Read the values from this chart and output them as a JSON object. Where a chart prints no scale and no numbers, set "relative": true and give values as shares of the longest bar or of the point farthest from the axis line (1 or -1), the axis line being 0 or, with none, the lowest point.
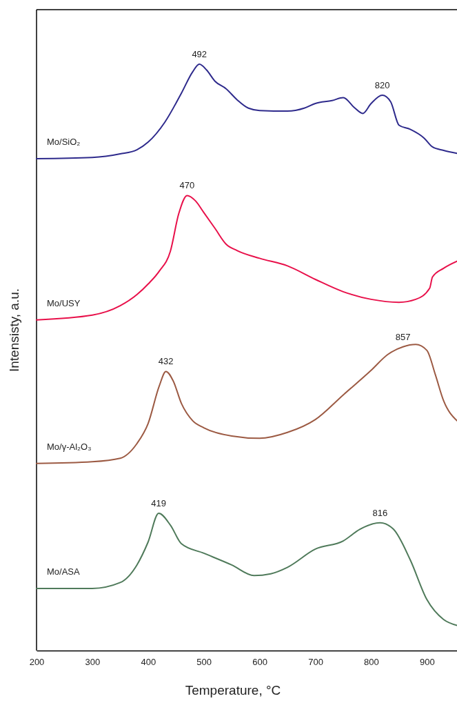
{
  "chart_data": {
    "type": "line",
    "relative": true,
    "xlabel": "Temperature, °C",
    "ylabel": "Intensisty, a.u.",
    "xlim": [
      200,
      954
    ],
    "xticks": [
      200,
      300,
      400,
      500,
      600,
      700,
      800,
      900
    ],
    "legend": false,
    "grid": false,
    "marker": "none",
    "line_style": "solid",
    "series": [
      {
        "name": "Mo/SiO₂",
        "color": "#2e2a8c",
        "x": [
          200,
          300,
          350,
          380,
          400,
          430,
          460,
          480,
          492,
          505,
          520,
          540,
          560,
          580,
          600,
          650,
          680,
          700,
          730,
          750,
          770,
          785,
          800,
          820,
          835,
          850,
          870,
          895,
          910,
          930,
          954
        ],
        "values": [
          0.839,
          0.841,
          0.847,
          0.854,
          0.867,
          0.901,
          0.951,
          0.987,
          1.0,
          0.99,
          0.971,
          0.958,
          0.939,
          0.925,
          0.921,
          0.92,
          0.925,
          0.933,
          0.938,
          0.943,
          0.926,
          0.916,
          0.933,
          0.947,
          0.936,
          0.896,
          0.889,
          0.874,
          0.859,
          0.853,
          0.848
        ]
      },
      {
        "name": "Mo/USY",
        "color": "#e8104a",
        "x": [
          200,
          300,
          350,
          380,
          400,
          420,
          440,
          455,
          470,
          485,
          500,
          520,
          540,
          560,
          600,
          650,
          700,
          750,
          800,
          850,
          880,
          905,
          910,
          930,
          954
        ],
        "values": [
          0.564,
          0.572,
          0.588,
          0.607,
          0.625,
          0.647,
          0.681,
          0.745,
          0.776,
          0.767,
          0.747,
          0.72,
          0.693,
          0.682,
          0.669,
          0.656,
          0.633,
          0.612,
          0.599,
          0.594,
          0.599,
          0.618,
          0.637,
          0.652,
          0.664
        ]
      },
      {
        "name": "Mo/γ-Al₂O₃",
        "color": "#9c5a43",
        "x": [
          200,
          300,
          350,
          380,
          400,
          420,
          432,
          445,
          460,
          480,
          500,
          550,
          600,
          650,
          700,
          750,
          800,
          830,
          857,
          880,
          900,
          915,
          930,
          954
        ],
        "values": [
          0.319,
          0.322,
          0.328,
          0.353,
          0.387,
          0.451,
          0.476,
          0.46,
          0.421,
          0.392,
          0.38,
          0.366,
          0.362,
          0.372,
          0.394,
          0.436,
          0.478,
          0.505,
          0.518,
          0.522,
          0.512,
          0.471,
          0.426,
          0.392
        ]
      },
      {
        "name": "Mo/ASA",
        "color": "#4f7a5a",
        "x": [
          200,
          250,
          300,
          350,
          380,
          400,
          419,
          440,
          460,
          500,
          550,
          590,
          620,
          650,
          700,
          750,
          780,
          816,
          840,
          870,
          900,
          930,
          954
        ],
        "values": [
          0.106,
          0.106,
          0.106,
          0.116,
          0.146,
          0.185,
          0.234,
          0.214,
          0.182,
          0.166,
          0.146,
          0.128,
          0.131,
          0.142,
          0.173,
          0.187,
          0.207,
          0.218,
          0.207,
          0.155,
          0.087,
          0.053,
          0.043
        ]
      }
    ],
    "annotations": [
      {
        "text": "492",
        "x": 492,
        "y": 1.0
      },
      {
        "text": "820",
        "x": 820,
        "y": 0.947
      },
      {
        "text": "470",
        "x": 470,
        "y": 0.776
      },
      {
        "text": "432",
        "x": 432,
        "y": 0.476
      },
      {
        "text": "857",
        "x": 857,
        "y": 0.518
      },
      {
        "text": "419",
        "x": 419,
        "y": 0.234
      },
      {
        "text": "816",
        "x": 816,
        "y": 0.218
      }
    ]
  }
}
